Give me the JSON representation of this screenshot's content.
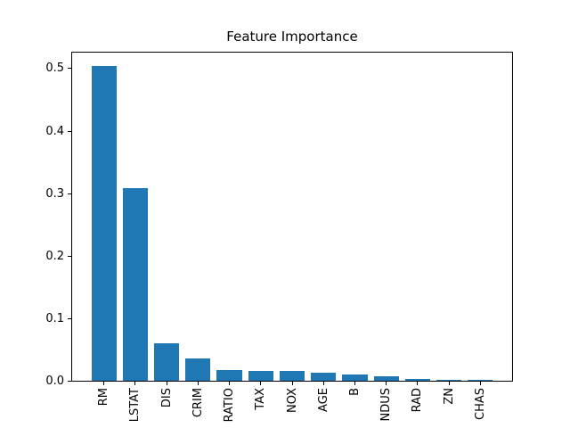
{
  "figure": {
    "background": "#ffffff"
  },
  "chart_data": {
    "type": "bar",
    "title": "Feature Importance",
    "categories": [
      "RM",
      "LSTAT",
      "DIS",
      "CRIM",
      "RATIO",
      "TAX",
      "NOX",
      "AGE",
      "B",
      "NDUS",
      "RAD",
      "ZN",
      "CHAS"
    ],
    "values": [
      0.504,
      0.309,
      0.061,
      0.037,
      0.018,
      0.017,
      0.017,
      0.013,
      0.011,
      0.008,
      0.004,
      0.0025,
      0.002
    ],
    "xlabel": "",
    "ylabel": "",
    "ylim": [
      0,
      0.527
    ],
    "ytick_values": [
      0.0,
      0.1,
      0.2,
      0.3,
      0.4,
      0.5
    ],
    "ytick_labels": [
      "0.0",
      "0.1",
      "0.2",
      "0.3",
      "0.4",
      "0.5"
    ],
    "xtick_rotation": 90,
    "bar_color": "#1f77b4",
    "bar_width_fraction": 0.8,
    "x_margin_units": 1.04,
    "grid": false,
    "legend_position": "none"
  }
}
